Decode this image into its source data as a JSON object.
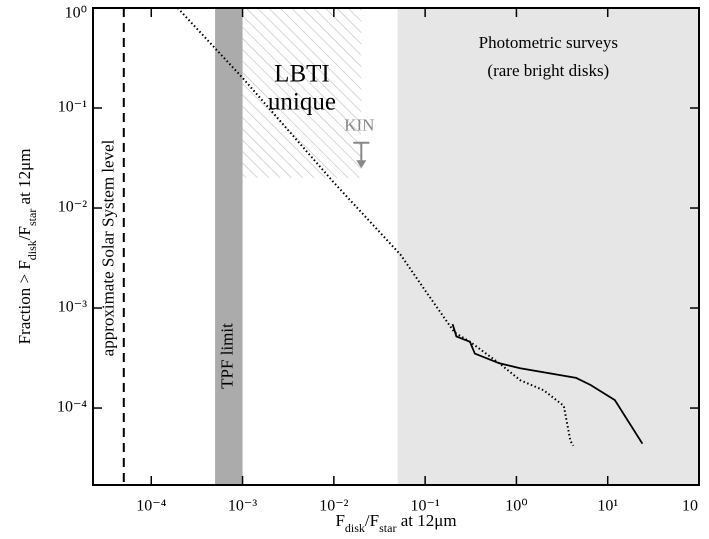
{
  "chart_data": {
    "type": "line",
    "xlabel": [
      "F",
      "disk",
      "/F",
      "star",
      " at 12μm"
    ],
    "ylabel": [
      "Fraction > F",
      "disk",
      "/F",
      "star",
      " at 12μm"
    ],
    "xlog": true,
    "ylog": true,
    "xlim": [
      2.3e-05,
      100
    ],
    "ylim": [
      1.7e-05,
      1
    ],
    "xticks": [
      {
        "value": 0.0001,
        "label": "10⁻⁴"
      },
      {
        "value": 0.001,
        "label": "10⁻³"
      },
      {
        "value": 0.01,
        "label": "10⁻²"
      },
      {
        "value": 0.1,
        "label": "10⁻¹"
      },
      {
        "value": 1,
        "label": "10⁰"
      },
      {
        "value": 10,
        "label": "10¹"
      },
      {
        "value": 100,
        "label": "10"
      }
    ],
    "yticks": [
      {
        "value": 0.0001,
        "label": "10⁻⁴"
      },
      {
        "value": 0.001,
        "label": "10⁻³"
      },
      {
        "value": 0.01,
        "label": "10⁻²"
      },
      {
        "value": 0.1,
        "label": "10⁻¹"
      },
      {
        "value": 1,
        "label": "10⁰"
      }
    ],
    "bands": [
      {
        "x": [
          0.05,
          100
        ],
        "label": [
          "Photometric surveys",
          "(rare bright disks)"
        ],
        "color": "#e6e6e6"
      },
      {
        "x": [
          0.0005,
          0.001
        ],
        "label": [
          "TPF limit"
        ],
        "color": "#ababab"
      },
      {
        "x": [
          0.001,
          0.02
        ],
        "y": [
          0.02,
          1
        ],
        "label": [
          "LBTI",
          "unique"
        ],
        "color": "#bdbdbd"
      }
    ],
    "vlines": [
      {
        "x": 5e-05,
        "label": "approximate Solar System level",
        "color": "#000000"
      }
    ],
    "limit_arrow": {
      "label": "KIN",
      "x": 0.02,
      "y": [
        0.045,
        0.025
      ],
      "color": "#888888"
    },
    "series": [
      {
        "style": "dotted",
        "color": "#000000",
        "x": [
          0.000195,
          0.001,
          0.01,
          0.054,
          0.1,
          0.21,
          0.31,
          0.65,
          1.1,
          2.0,
          3.3,
          3.9,
          4.2
        ],
        "values": [
          1,
          0.2,
          0.018,
          0.0034,
          0.0015,
          0.00057,
          0.00046,
          0.00028,
          0.00019,
          0.00015,
          0.000105,
          4.7e-05,
          4.2e-05
        ]
      },
      {
        "style": "solid",
        "color": "#000000",
        "x": [
          0.2,
          0.22,
          0.31,
          0.35,
          0.65,
          1.1,
          4.5,
          6.5,
          12,
          24
        ],
        "values": [
          0.00069,
          0.00052,
          0.00046,
          0.00035,
          0.00028,
          0.00025,
          0.0002,
          0.00017,
          0.00012,
          4.4e-05
        ]
      }
    ]
  }
}
